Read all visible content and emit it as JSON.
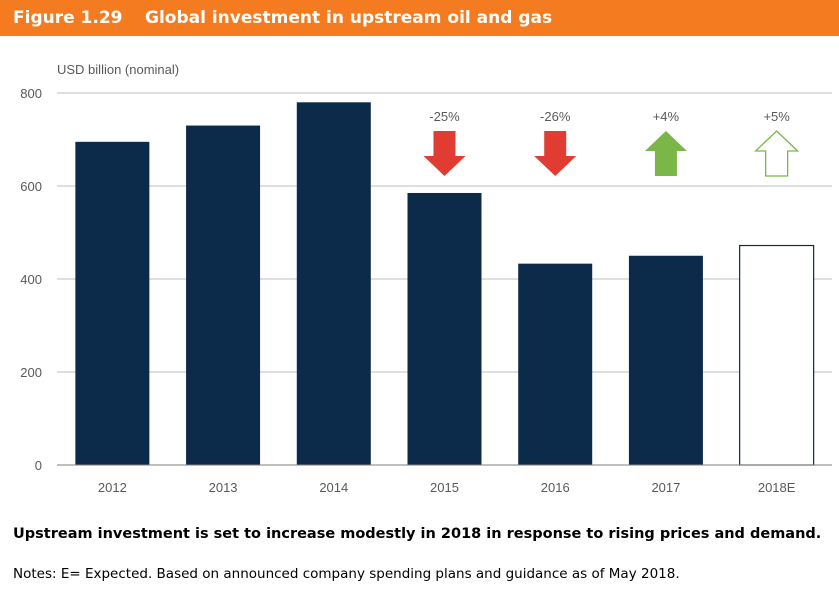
{
  "header": {
    "figure_number": "Figure 1.29",
    "title": "Global investment in upstream oil and gas"
  },
  "chart_data": {
    "type": "bar",
    "ylabel": "USD billion (nominal)",
    "categories": [
      "2012",
      "2013",
      "2014",
      "2015",
      "2016",
      "2017",
      "2018E"
    ],
    "values": [
      695,
      730,
      780,
      585,
      433,
      450,
      472
    ],
    "ylim": [
      0,
      800
    ],
    "yticks": [
      0,
      200,
      400,
      600,
      800
    ],
    "grid": true,
    "colors": {
      "bar": "#0c2a4a",
      "expected_bar_fill": "#ffffff",
      "expected_bar_stroke": "#0c2a4a",
      "gridline": "#bfbfbf",
      "axis": "#7f7f7f"
    },
    "annotations": [
      {
        "category": "2015",
        "label": "-25%",
        "direction": "down",
        "style": "filled",
        "color": "#e03c31"
      },
      {
        "category": "2016",
        "label": "-26%",
        "direction": "down",
        "style": "filled",
        "color": "#e03c31"
      },
      {
        "category": "2017",
        "label": "+4%",
        "direction": "up",
        "style": "filled",
        "color": "#7ab648"
      },
      {
        "category": "2018E",
        "label": "+5%",
        "direction": "up",
        "style": "outline",
        "color": "#7ab648"
      }
    ]
  },
  "caption": "Upstream investment is set to increase modestly in 2018 in response to rising prices and demand.",
  "notes": "Notes: E= Expected. Based on announced company spending plans and guidance as of May 2018."
}
